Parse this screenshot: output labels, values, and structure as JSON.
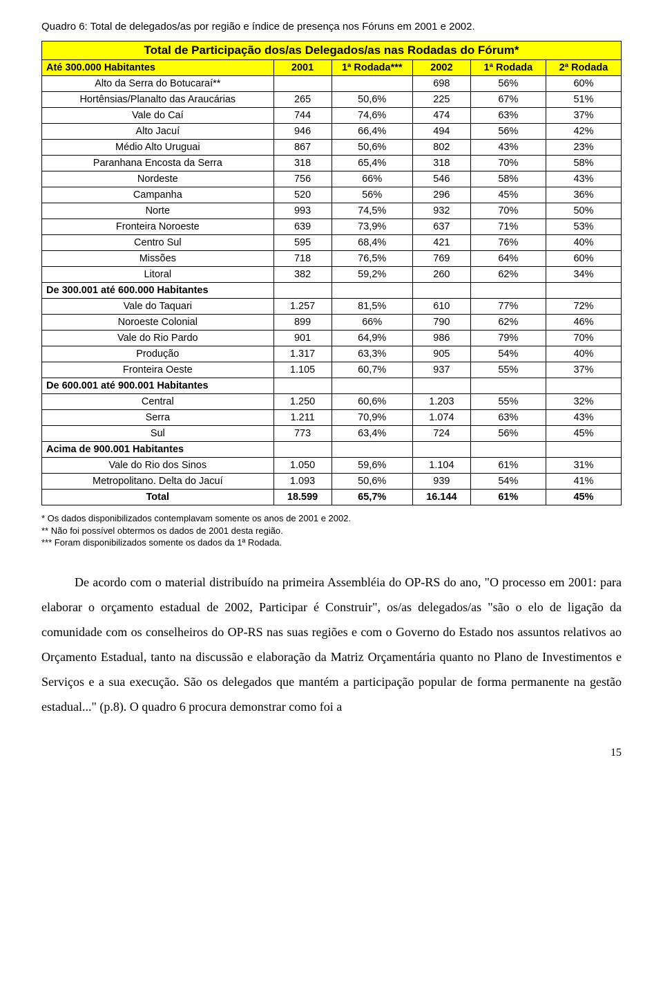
{
  "caption": "Quadro 6: Total de delegados/as por região e índice de presença nos Fóruns em 2001 e 2002.",
  "table": {
    "title": "Total de Participação dos/as Delegados/as nas Rodadas do Fórum*",
    "headers": {
      "col0": "Até 300.000 Habitantes",
      "col1": "2001",
      "col2": "1ª Rodada***",
      "col3": "2002",
      "col4": "1ª Rodada",
      "col5": "2ª Rodada"
    },
    "sections": [
      {
        "label": null,
        "rows": [
          {
            "region": "Alto da Serra do Botucaraí**",
            "c1": "",
            "c2": "",
            "c3": "698",
            "c4": "56%",
            "c5": "60%"
          },
          {
            "region": "Hortênsias/Planalto das Araucárias",
            "c1": "265",
            "c2": "50,6%",
            "c3": "225",
            "c4": "67%",
            "c5": "51%"
          },
          {
            "region": "Vale do Caí",
            "c1": "744",
            "c2": "74,6%",
            "c3": "474",
            "c4": "63%",
            "c5": "37%"
          },
          {
            "region": "Alto Jacuí",
            "c1": "946",
            "c2": "66,4%",
            "c3": "494",
            "c4": "56%",
            "c5": "42%"
          },
          {
            "region": "Médio Alto Uruguai",
            "c1": "867",
            "c2": "50,6%",
            "c3": "802",
            "c4": "43%",
            "c5": "23%"
          },
          {
            "region": "Paranhana Encosta da Serra",
            "c1": "318",
            "c2": "65,4%",
            "c3": "318",
            "c4": "70%",
            "c5": "58%"
          },
          {
            "region": "Nordeste",
            "c1": "756",
            "c2": "66%",
            "c3": "546",
            "c4": "58%",
            "c5": "43%"
          },
          {
            "region": "Campanha",
            "c1": "520",
            "c2": "56%",
            "c3": "296",
            "c4": "45%",
            "c5": "36%"
          },
          {
            "region": "Norte",
            "c1": "993",
            "c2": "74,5%",
            "c3": "932",
            "c4": "70%",
            "c5": "50%"
          },
          {
            "region": "Fronteira Noroeste",
            "c1": "639",
            "c2": "73,9%",
            "c3": "637",
            "c4": "71%",
            "c5": "53%"
          },
          {
            "region": "Centro Sul",
            "c1": "595",
            "c2": "68,4%",
            "c3": "421",
            "c4": "76%",
            "c5": "40%"
          },
          {
            "region": "Missões",
            "c1": "718",
            "c2": "76,5%",
            "c3": "769",
            "c4": "64%",
            "c5": "60%"
          },
          {
            "region": "Litoral",
            "c1": "382",
            "c2": "59,2%",
            "c3": "260",
            "c4": "62%",
            "c5": "34%"
          }
        ]
      },
      {
        "label": "De 300.001 até 600.000 Habitantes",
        "rows": [
          {
            "region": "Vale do Taquari",
            "c1": "1.257",
            "c2": "81,5%",
            "c3": "610",
            "c4": "77%",
            "c5": "72%"
          },
          {
            "region": "Noroeste Colonial",
            "c1": "899",
            "c2": "66%",
            "c3": "790",
            "c4": "62%",
            "c5": "46%"
          },
          {
            "region": "Vale do Rio Pardo",
            "c1": "901",
            "c2": "64,9%",
            "c3": "986",
            "c4": "79%",
            "c5": "70%"
          },
          {
            "region": "Produção",
            "c1": "1.317",
            "c2": "63,3%",
            "c3": "905",
            "c4": "54%",
            "c5": "40%"
          },
          {
            "region": "Fronteira Oeste",
            "c1": "1.105",
            "c2": "60,7%",
            "c3": "937",
            "c4": "55%",
            "c5": "37%"
          }
        ]
      },
      {
        "label": "De 600.001 até 900.001 Habitantes",
        "rows": [
          {
            "region": "Central",
            "c1": "1.250",
            "c2": "60,6%",
            "c3": "1.203",
            "c4": "55%",
            "c5": "32%"
          },
          {
            "region": "Serra",
            "c1": "1.211",
            "c2": "70,9%",
            "c3": "1.074",
            "c4": "63%",
            "c5": "43%"
          },
          {
            "region": "Sul",
            "c1": "773",
            "c2": "63,4%",
            "c3": "724",
            "c4": "56%",
            "c5": "45%"
          }
        ]
      },
      {
        "label": "Acima de 900.001 Habitantes",
        "rows": [
          {
            "region": "Vale do Rio dos Sinos",
            "c1": "1.050",
            "c2": "59,6%",
            "c3": "1.104",
            "c4": "61%",
            "c5": "31%"
          },
          {
            "region": "Metropolitano. Delta do Jacuí",
            "c1": "1.093",
            "c2": "50,6%",
            "c3": "939",
            "c4": "54%",
            "c5": "41%"
          }
        ]
      }
    ],
    "total": {
      "region": "Total",
      "c1": "18.599",
      "c2": "65,7%",
      "c3": "16.144",
      "c4": "61%",
      "c5": "45%"
    },
    "col_widths": [
      "40%",
      "10%",
      "14%",
      "10%",
      "13%",
      "13%"
    ],
    "title_bg": "#ffff00",
    "header_bg": "#ffff00",
    "border_color": "#000000"
  },
  "footnotes": [
    "* Os dados disponibilizados contemplavam somente os anos de 2001 e 2002.",
    "** Não foi possível obtermos os dados de 2001 desta região.",
    "*** Foram disponibilizados somente os dados da 1ª Rodada."
  ],
  "paragraph": "De acordo com o material distribuído na primeira Assembléia do OP-RS do ano, \"O processo em 2001: para elaborar o orçamento estadual de 2002, Participar é Construir\", os/as delegados/as \"são o elo de ligação da comunidade com os conselheiros do OP-RS nas suas regiões e com o Governo do Estado nos assuntos relativos ao Orçamento Estadual, tanto na discussão e elaboração da Matriz Orçamentária quanto no Plano de Investimentos e  Serviços e a sua execução. São os delegados que mantém a participação popular de forma permanente na gestão estadual...\" (p.8). O quadro 6 procura demonstrar como foi a",
  "page_number": "15"
}
